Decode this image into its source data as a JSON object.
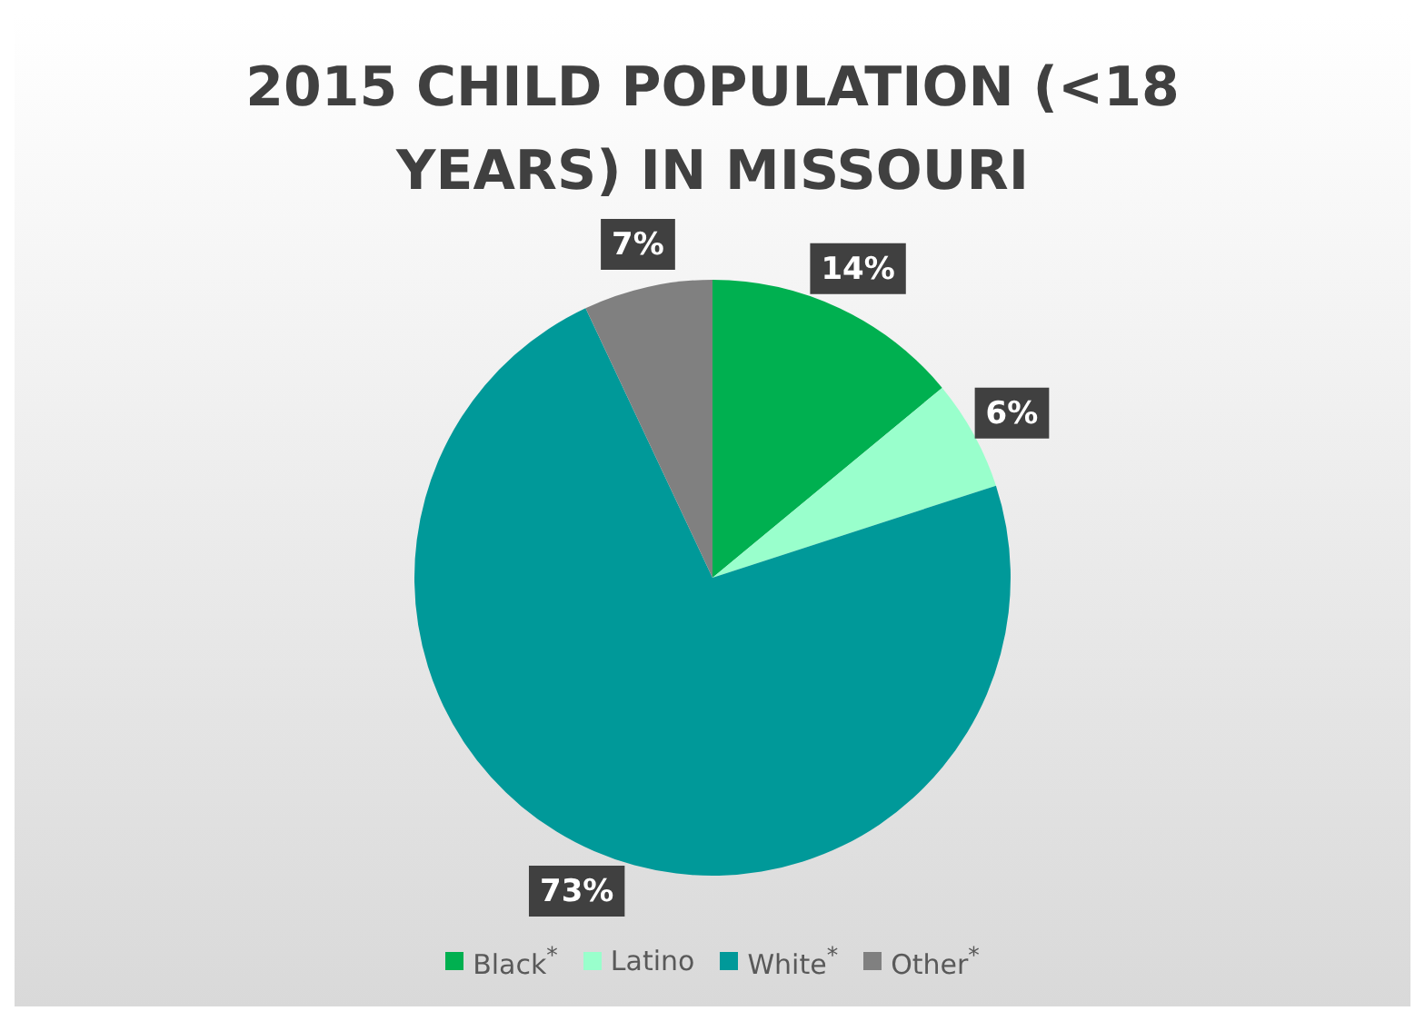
{
  "chart_data": {
    "type": "pie",
    "title": "2015 CHILD POPULATION (<18 YEARS) IN MISSOURI",
    "categories": [
      "Black$^{*}$",
      "Latino",
      "White$^{*}$",
      "Other$^{*}$"
    ],
    "values": [
      14,
      6,
      73,
      7
    ],
    "colors": [
      "#00b050",
      "#99ffcc",
      "#009999",
      "#808080"
    ],
    "value_labels": [
      "14%",
      "6%",
      "73%",
      "7%"
    ],
    "legend": "bottom"
  }
}
